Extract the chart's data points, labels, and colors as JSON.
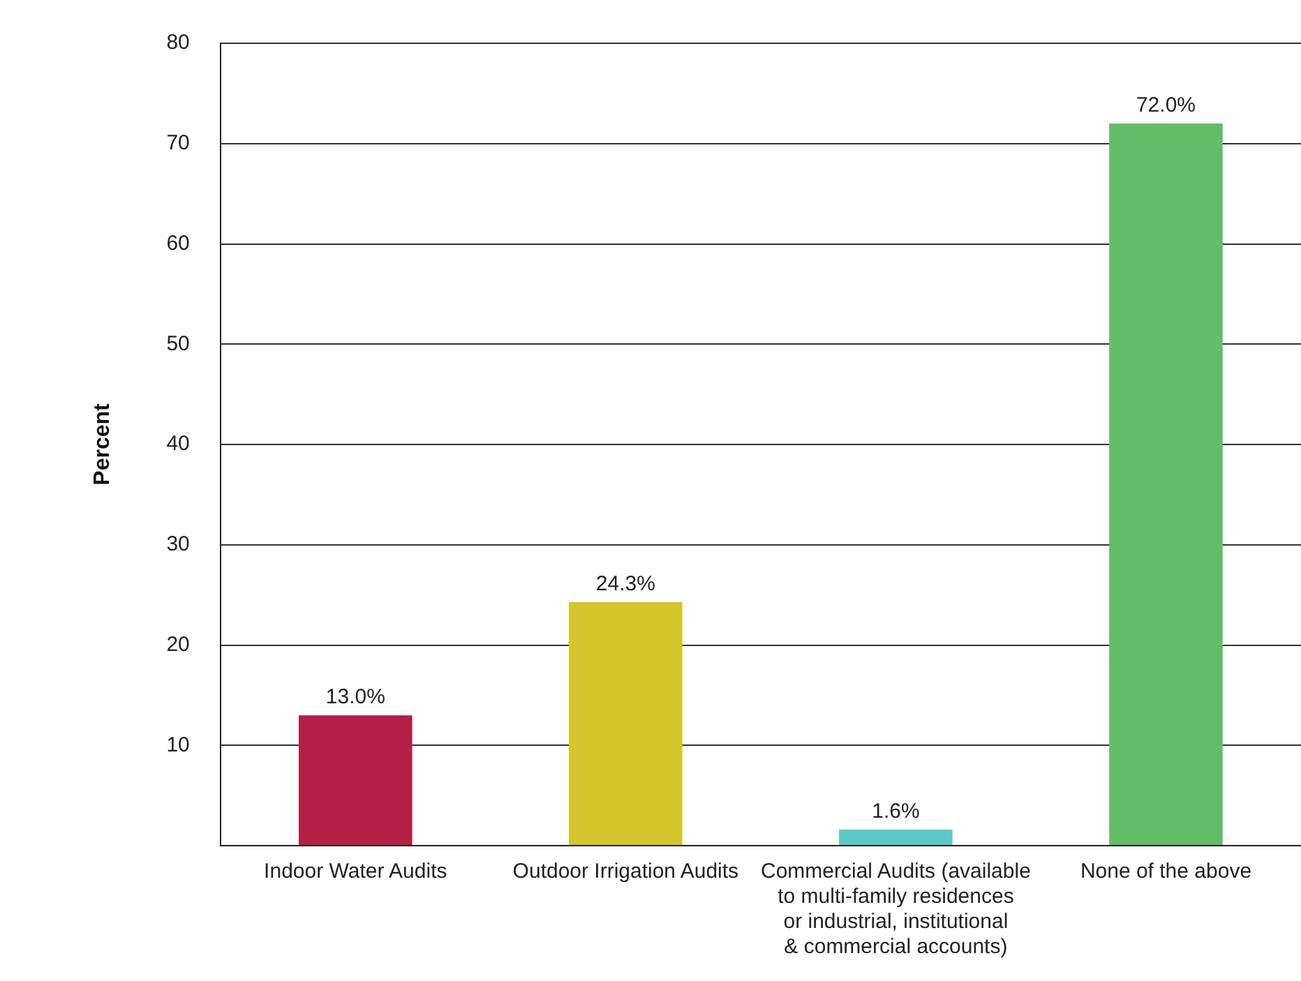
{
  "chart_data": {
    "type": "bar",
    "ylabel": "Percent",
    "categories": [
      "Indoor Water Audits",
      "Outdoor Irrigation Audits",
      "Commercial Audits (available to multi-family residences or industrial, institutional & commercial accounts)",
      "None of the above"
    ],
    "values": [
      13.0,
      24.3,
      1.6,
      72.0
    ],
    "colors": [
      "#b31f45",
      "#d4c52a",
      "#5bc8c8",
      "#63be67"
    ],
    "value_labels": [
      "13.0%",
      "24.3%",
      "1.6%",
      "72.0%"
    ],
    "ylim": [
      0,
      80
    ],
    "yticks": [
      {
        "value": 0,
        "label": null
      },
      10,
      20,
      30,
      40,
      50,
      60,
      70,
      80
    ],
    "grid": "y",
    "legend": false
  }
}
